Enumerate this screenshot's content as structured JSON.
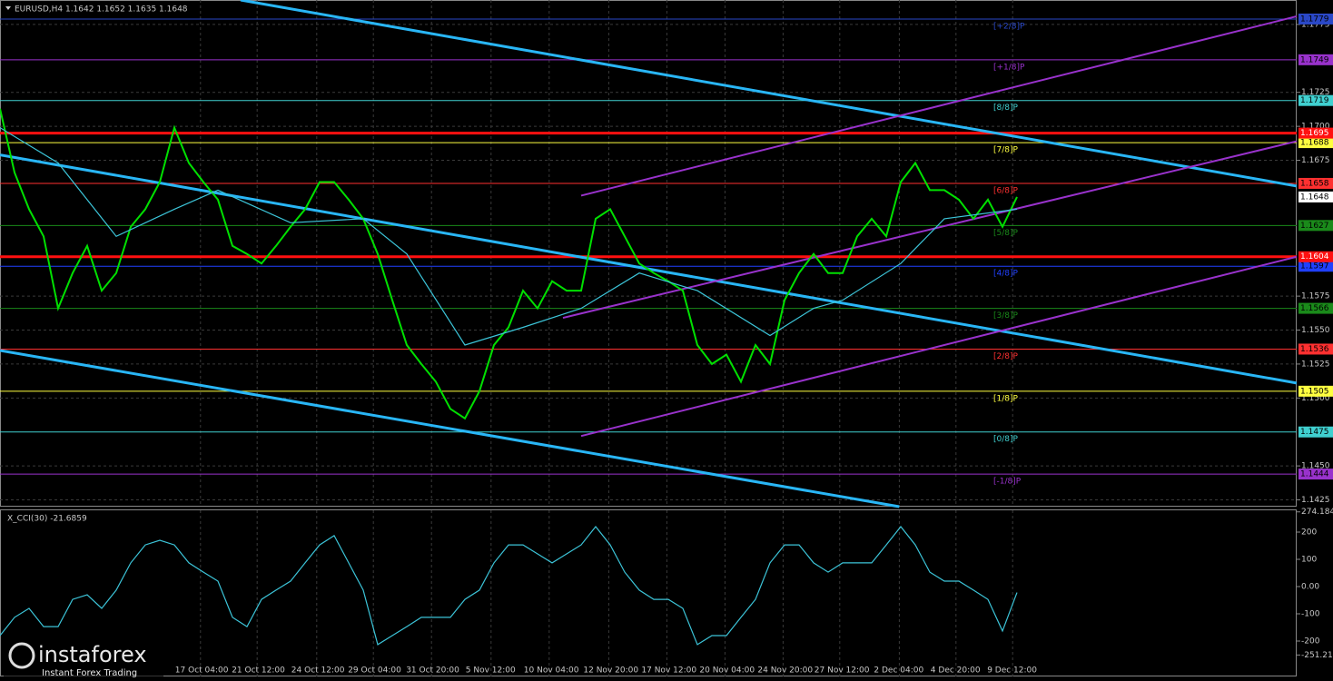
{
  "chart_data": [
    {
      "type": "line",
      "title": "EURUSD,H4  1.1642 1.1652 1.1635 1.1648",
      "xlim": [
        0,
        89.25
      ],
      "ylim": [
        1.142,
        1.1793
      ],
      "xticks": [
        {
          "value": 13.8,
          "label": "17 Oct 04:00"
        },
        {
          "value": 17.7,
          "label": "21 Oct 12:00"
        },
        {
          "value": 21.8,
          "label": "24 Oct 12:00"
        },
        {
          "value": 25.7,
          "label": "29 Oct 04:00"
        },
        {
          "value": 29.7,
          "label": "31 Oct 20:00"
        },
        {
          "value": 33.8,
          "label": "5 Nov 12:00"
        },
        {
          "value": 37.8,
          "label": "10 Nov 04:00"
        },
        {
          "value": 41.9,
          "label": "12 Nov 20:00"
        },
        {
          "value": 45.9,
          "label": "17 Nov 12:00"
        },
        {
          "value": 49.9,
          "label": "20 Nov 04:00"
        },
        {
          "value": 53.9,
          "label": "24 Nov 20:00"
        },
        {
          "value": 57.8,
          "label": "27 Nov 12:00"
        },
        {
          "value": 61.9,
          "label": "2 Dec 04:00"
        },
        {
          "value": 65.8,
          "label": "4 Dec 20:00"
        },
        {
          "value": 69.7,
          "label": "9 Dec 12:00"
        }
      ],
      "yticks": [
        1.1775,
        1.1725,
        {
          "value": 1.17,
          "label": "1.1700"
        },
        1.1675,
        1.1575,
        {
          "value": 1.155,
          "label": "1.1550"
        },
        1.1525,
        {
          "value": 1.15,
          "label": "1.1500"
        },
        {
          "value": 1.145,
          "label": "1.1450"
        },
        1.1425
      ],
      "grid": true,
      "series": [
        {
          "name": "EURUSD",
          "color": "#00e000",
          "x": [
            0,
            1,
            2,
            3,
            4,
            5,
            6,
            7,
            8,
            9,
            10,
            11,
            12,
            13,
            14,
            15,
            16,
            17,
            18,
            19,
            20,
            21,
            22,
            23,
            24,
            25,
            26,
            27,
            28,
            29,
            30,
            31,
            32,
            33,
            34,
            35,
            36,
            37,
            38,
            39,
            40,
            41,
            42,
            43,
            44,
            45,
            46,
            47,
            48,
            49,
            50,
            51,
            52,
            53,
            54,
            55,
            56,
            57,
            58,
            59,
            60,
            61,
            62,
            63,
            64,
            65,
            66,
            67,
            68,
            69,
            70
          ],
          "values": [
            1.1713,
            1.1666,
            1.1639,
            1.1619,
            1.1566,
            1.1592,
            1.1612,
            1.1579,
            1.1592,
            1.1626,
            1.1639,
            1.1659,
            1.1699,
            1.1673,
            1.1659,
            1.1646,
            1.1612,
            1.1606,
            1.1599,
            1.1612,
            1.1626,
            1.1639,
            1.1659,
            1.1659,
            1.1646,
            1.1632,
            1.1606,
            1.1572,
            1.1539,
            1.1525,
            1.1512,
            1.1492,
            1.1485,
            1.1505,
            1.1539,
            1.1552,
            1.1579,
            1.1566,
            1.1586,
            1.1579,
            1.1579,
            1.1632,
            1.1639,
            1.1619,
            1.1599,
            1.1592,
            1.1586,
            1.1579,
            1.1539,
            1.1525,
            1.1532,
            1.1512,
            1.1539,
            1.1525,
            1.1572,
            1.1592,
            1.1606,
            1.1592,
            1.1592,
            1.1619,
            1.1632,
            1.1619,
            1.1659,
            1.1673,
            1.1653,
            1.1653,
            1.1646,
            1.1632,
            1.1646,
            1.1626,
            1.1648
          ]
        },
        {
          "name": "MA",
          "color": "#3cc4d8",
          "x": [
            0,
            4,
            8,
            12,
            15,
            20,
            25,
            28,
            32,
            36,
            40,
            44,
            48,
            53,
            56,
            58,
            62,
            65,
            70
          ],
          "values": [
            1.1699,
            1.1673,
            1.1619,
            1.1639,
            1.1653,
            1.1629,
            1.1632,
            1.1606,
            1.1539,
            1.1552,
            1.1566,
            1.1592,
            1.1579,
            1.1546,
            1.1566,
            1.1572,
            1.1599,
            1.1632,
            1.1639
          ]
        }
      ],
      "trendlines": [
        {
          "color": "#29b6f6",
          "points": [
            [
              16.56,
              1.1793
            ],
            [
              89.25,
              1.1656
            ]
          ]
        },
        {
          "color": "#29b6f6",
          "points": [
            [
              0,
              1.1679
            ],
            [
              89.25,
              1.1511
            ]
          ]
        },
        {
          "color": "#29b6f6",
          "points": [
            [
              0,
              1.1535
            ],
            [
              61.9,
              1.142
            ]
          ]
        },
        {
          "color": "#9932cc",
          "points": [
            [
              40,
              1.1649
            ],
            [
              89.25,
              1.1781
            ]
          ]
        },
        {
          "color": "#9932cc",
          "points": [
            [
              38.75,
              1.1559
            ],
            [
              89.25,
              1.1689
            ]
          ]
        },
        {
          "color": "#9932cc",
          "points": [
            [
              40,
              1.1472
            ],
            [
              89.25,
              1.1604
            ]
          ]
        }
      ],
      "levels": [
        {
          "name": "[+2/8]P",
          "value": 1.1779,
          "color": "#2a48c8"
        },
        {
          "name": "[+1/8]P",
          "value": 1.1749,
          "color": "#9932cc"
        },
        {
          "name": "[8/8]P",
          "value": 1.1719,
          "color": "#40d0d0"
        },
        {
          "name": "[7/8]P",
          "value": 1.1688,
          "color": "#ffff40"
        },
        {
          "name": "[6/8]P",
          "value": 1.1658,
          "color": "#ff3030"
        },
        {
          "name": "[5/8]P",
          "value": 1.1627,
          "color": "#1a8a1a"
        },
        {
          "name": "[4/8]P",
          "value": 1.1597,
          "color": "#2040ff"
        },
        {
          "name": "[3/8]P",
          "value": 1.1566,
          "color": "#1a8a1a"
        },
        {
          "name": "[2/8]P",
          "value": 1.1536,
          "color": "#ff3030"
        },
        {
          "name": "[1/8]P",
          "value": 1.1505,
          "color": "#ffff40"
        },
        {
          "name": "[0/8]P",
          "value": 1.1475,
          "color": "#40d0d0"
        },
        {
          "name": "[-1/8]P",
          "value": 1.1444,
          "color": "#9932cc"
        }
      ],
      "hlines": [
        {
          "value": 1.1695,
          "color": "#ff1010"
        },
        {
          "value": 1.1604,
          "color": "#ff1010"
        }
      ],
      "current_price": 1.1648,
      "watermark": {
        "brand": "instaforex",
        "slogan": "Instant Forex Trading"
      }
    },
    {
      "type": "line",
      "title": "X_CCI(30) -21.6859",
      "xlim": [
        0,
        89.25
      ],
      "ylim": [
        -330,
        280
      ],
      "yticks": [
        274.1841,
        200,
        100,
        {
          "value": 0,
          "label": "0.00"
        },
        -100,
        -200,
        -251.21
      ],
      "series": [
        {
          "name": "CCI",
          "color": "#3cc4d8",
          "x": [
            0,
            1,
            2,
            3,
            4,
            5,
            6,
            7,
            8,
            9,
            10,
            11,
            12,
            13,
            14,
            15,
            16,
            17,
            18,
            19,
            20,
            21,
            22,
            23,
            24,
            25,
            26,
            27,
            28,
            29,
            30,
            31,
            32,
            33,
            34,
            35,
            36,
            37,
            38,
            39,
            40,
            41,
            42,
            43,
            44,
            45,
            46,
            47,
            48,
            49,
            50,
            51,
            52,
            53,
            54,
            55,
            56,
            57,
            58,
            59,
            60,
            61,
            62,
            63,
            64,
            65,
            66,
            67,
            68,
            69,
            70
          ],
          "values": [
            -180,
            -113,
            -80,
            -147,
            -147,
            -47,
            -30,
            -80,
            -13,
            87,
            153,
            170,
            153,
            87,
            53,
            20,
            -113,
            -147,
            -47,
            -13,
            20,
            87,
            153,
            187,
            87,
            -13,
            -213,
            -180,
            -147,
            -113,
            -113,
            -113,
            -47,
            -13,
            87,
            153,
            153,
            120,
            87,
            120,
            153,
            220,
            153,
            53,
            -13,
            -47,
            -47,
            -80,
            -213,
            -180,
            -180,
            -113,
            -47,
            87,
            153,
            153,
            87,
            53,
            87,
            87,
            87,
            153,
            220,
            153,
            53,
            20,
            20,
            -13,
            -47,
            -163,
            -22
          ]
        }
      ]
    }
  ]
}
